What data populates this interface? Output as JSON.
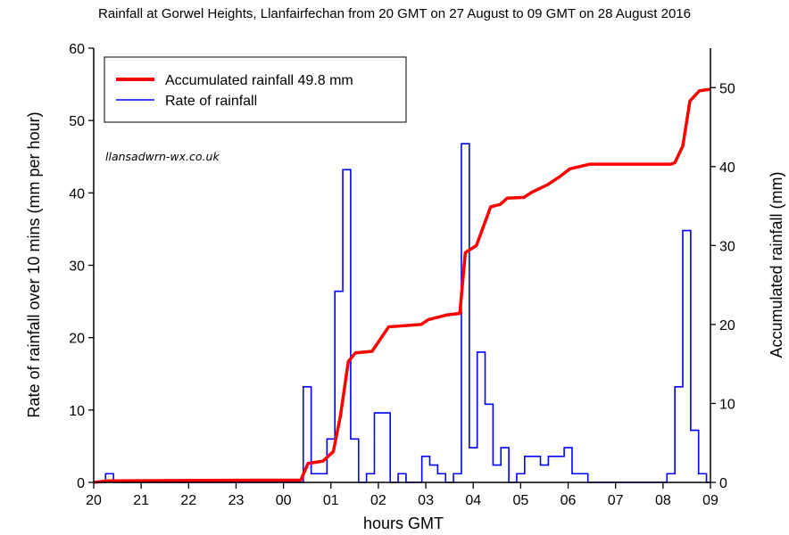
{
  "chart_data": {
    "type": "line",
    "title": "Rainfall at Gorwel Heights, Llanfairfechan from 20 GMT on 27 August to 09 GMT on 28 August 2016",
    "xlabel": "hours GMT",
    "ylabel_left": "Rate of rainfall over 10 mins (mm per hour)",
    "ylabel_right": "Accumulated rainfall (mm)",
    "watermark": "llansadwrn-wx.co.uk",
    "x_ticks": [
      "20",
      "21",
      "22",
      "23",
      "00",
      "01",
      "02",
      "03",
      "04",
      "05",
      "06",
      "07",
      "08",
      "09"
    ],
    "xlim": [
      "20:00",
      "09:00"
    ],
    "ylim_left": [
      0,
      60
    ],
    "y_ticks_left": [
      "0",
      "10",
      "20",
      "30",
      "40",
      "50",
      "60"
    ],
    "ylim_right": [
      0,
      55
    ],
    "y_ticks_right": [
      "0",
      "10",
      "20",
      "30",
      "40",
      "50"
    ],
    "grid": false,
    "legend_position": "top-left",
    "series": [
      {
        "name": "Accumulated rainfall 49.8 mm",
        "axis": "right",
        "style": "line",
        "color": "#ff0000",
        "points": [
          [
            "20:00",
            0
          ],
          [
            "20:18",
            0.2
          ],
          [
            "00:22",
            0.3
          ],
          [
            "00:31",
            2.4
          ],
          [
            "00:50",
            2.7
          ],
          [
            "01:03",
            3.9
          ],
          [
            "01:12",
            8.4
          ],
          [
            "01:22",
            15.3
          ],
          [
            "01:31",
            16.4
          ],
          [
            "01:52",
            16.6
          ],
          [
            "02:13",
            19.7
          ],
          [
            "02:54",
            20.0
          ],
          [
            "03:03",
            20.6
          ],
          [
            "03:26",
            21.2
          ],
          [
            "03:43",
            21.4
          ],
          [
            "03:50",
            29.1
          ],
          [
            "04:04",
            30.0
          ],
          [
            "04:22",
            34.9
          ],
          [
            "04:34",
            35.2
          ],
          [
            "04:43",
            36.0
          ],
          [
            "05:04",
            36.1
          ],
          [
            "05:15",
            36.8
          ],
          [
            "05:34",
            37.7
          ],
          [
            "05:49",
            38.7
          ],
          [
            "06:02",
            39.7
          ],
          [
            "06:27",
            40.3
          ],
          [
            "08:10",
            40.3
          ],
          [
            "08:15",
            40.5
          ],
          [
            "08:25",
            42.6
          ],
          [
            "08:34",
            48.3
          ],
          [
            "08:46",
            49.6
          ],
          [
            "09:00",
            49.8
          ]
        ]
      },
      {
        "name": "Rate of rainfall",
        "axis": "left",
        "style": "step",
        "color": "#0000ff",
        "interval_minutes": 10,
        "points": [
          [
            "20:20",
            1.2
          ],
          [
            "00:30",
            13.2
          ],
          [
            "00:40",
            1.2
          ],
          [
            "00:50",
            1.2
          ],
          [
            "01:00",
            6.0
          ],
          [
            "01:10",
            26.4
          ],
          [
            "01:20",
            43.2
          ],
          [
            "01:30",
            6.0
          ],
          [
            "01:50",
            1.2
          ],
          [
            "02:00",
            9.6
          ],
          [
            "02:10",
            9.6
          ],
          [
            "02:30",
            1.2
          ],
          [
            "03:00",
            3.6
          ],
          [
            "03:10",
            2.4
          ],
          [
            "03:20",
            1.2
          ],
          [
            "03:40",
            1.2
          ],
          [
            "03:50",
            46.8
          ],
          [
            "04:00",
            4.8
          ],
          [
            "04:10",
            18.0
          ],
          [
            "04:20",
            10.8
          ],
          [
            "04:30",
            2.4
          ],
          [
            "04:40",
            4.8
          ],
          [
            "05:00",
            1.2
          ],
          [
            "05:10",
            3.6
          ],
          [
            "05:20",
            3.6
          ],
          [
            "05:30",
            2.4
          ],
          [
            "05:40",
            3.6
          ],
          [
            "05:50",
            3.6
          ],
          [
            "06:00",
            4.8
          ],
          [
            "06:10",
            1.2
          ],
          [
            "06:20",
            1.2
          ],
          [
            "08:10",
            1.2
          ],
          [
            "08:20",
            13.2
          ],
          [
            "08:30",
            34.8
          ],
          [
            "08:40",
            7.2
          ],
          [
            "08:50",
            1.2
          ]
        ]
      }
    ]
  }
}
